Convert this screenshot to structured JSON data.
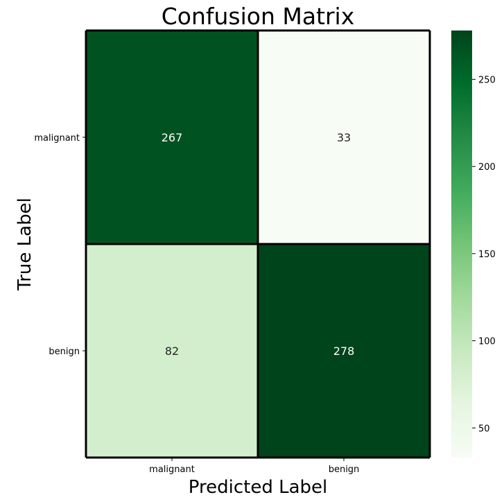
{
  "chart_data": {
    "type": "heatmap",
    "title": "Confusion Matrix",
    "xlabel": "Predicted Label",
    "ylabel": "True Label",
    "x_categories": [
      "malignant",
      "benign"
    ],
    "y_categories": [
      "malignant",
      "benign"
    ],
    "values": [
      [
        267,
        33
      ],
      [
        82,
        278
      ]
    ],
    "colormap": "Greens",
    "color_range": [
      33,
      278
    ],
    "colorbar": {
      "ticks": [
        50,
        100,
        150,
        200,
        250
      ],
      "tick_labels": [
        "50",
        "100",
        "150",
        "200",
        "250"
      ]
    },
    "cell_border_color": "#000000",
    "grid": false
  }
}
